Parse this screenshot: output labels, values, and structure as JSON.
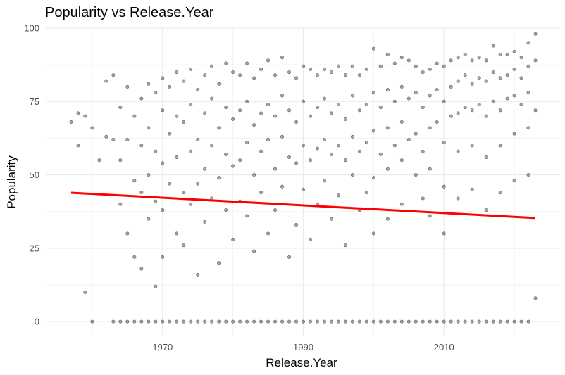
{
  "chart_data": {
    "type": "scatter",
    "title": "Popularity vs Release.Year",
    "xlabel": "Release.Year",
    "ylabel": "Popularity",
    "xlim": [
      1953.5,
      2026.5
    ],
    "ylim": [
      -5,
      100
    ],
    "x_ticks": [
      1970,
      1990,
      2010
    ],
    "y_ticks": [
      0,
      25,
      50,
      75,
      100
    ],
    "grid": true,
    "legend": "none",
    "point_color": "#000000",
    "point_opacity": 0.35,
    "trend_color": "#ff0000",
    "trend_line": {
      "x": [
        1957,
        2023
      ],
      "y": [
        43.9,
        35.3
      ]
    },
    "series": [
      {
        "points": [
          [
            1957,
            68
          ],
          [
            1958,
            71
          ],
          [
            1958,
            60
          ],
          [
            1959,
            70
          ],
          [
            1959,
            10
          ],
          [
            1960,
            0
          ],
          [
            1960,
            66
          ],
          [
            1961,
            55
          ],
          [
            1962,
            82
          ],
          [
            1962,
            63
          ],
          [
            1963,
            84
          ],
          [
            1963,
            62
          ],
          [
            1963,
            0
          ],
          [
            1964,
            73
          ],
          [
            1964,
            55
          ],
          [
            1964,
            40
          ],
          [
            1964,
            0
          ],
          [
            1965,
            80
          ],
          [
            1965,
            62
          ],
          [
            1965,
            30
          ],
          [
            1965,
            0
          ],
          [
            1966,
            70
          ],
          [
            1966,
            48
          ],
          [
            1966,
            22
          ],
          [
            1966,
            0
          ],
          [
            1967,
            76
          ],
          [
            1967,
            60
          ],
          [
            1967,
            44
          ],
          [
            1967,
            18
          ],
          [
            1967,
            0
          ],
          [
            1968,
            81
          ],
          [
            1968,
            66
          ],
          [
            1968,
            50
          ],
          [
            1968,
            35
          ],
          [
            1968,
            0
          ],
          [
            1969,
            78
          ],
          [
            1969,
            58
          ],
          [
            1969,
            41
          ],
          [
            1969,
            12
          ],
          [
            1969,
            0
          ],
          [
            1970,
            83
          ],
          [
            1970,
            72
          ],
          [
            1970,
            54
          ],
          [
            1970,
            38
          ],
          [
            1970,
            22
          ],
          [
            1970,
            0
          ],
          [
            1971,
            80
          ],
          [
            1971,
            64
          ],
          [
            1971,
            47
          ],
          [
            1971,
            0
          ],
          [
            1972,
            85
          ],
          [
            1972,
            70
          ],
          [
            1972,
            56
          ],
          [
            1972,
            30
          ],
          [
            1972,
            0
          ],
          [
            1973,
            82
          ],
          [
            1973,
            68
          ],
          [
            1973,
            44
          ],
          [
            1973,
            26
          ],
          [
            1973,
            0
          ],
          [
            1974,
            86
          ],
          [
            1974,
            74
          ],
          [
            1974,
            58
          ],
          [
            1974,
            40
          ],
          [
            1974,
            0
          ],
          [
            1975,
            79
          ],
          [
            1975,
            62
          ],
          [
            1975,
            47
          ],
          [
            1975,
            16
          ],
          [
            1975,
            0
          ],
          [
            1976,
            84
          ],
          [
            1976,
            71
          ],
          [
            1976,
            52
          ],
          [
            1976,
            34
          ],
          [
            1976,
            0
          ],
          [
            1977,
            87
          ],
          [
            1977,
            76
          ],
          [
            1977,
            60
          ],
          [
            1977,
            42
          ],
          [
            1977,
            0
          ],
          [
            1978,
            81
          ],
          [
            1978,
            66
          ],
          [
            1978,
            49
          ],
          [
            1978,
            20
          ],
          [
            1978,
            0
          ],
          [
            1979,
            88
          ],
          [
            1979,
            73
          ],
          [
            1979,
            57
          ],
          [
            1979,
            38
          ],
          [
            1979,
            0
          ],
          [
            1980,
            85
          ],
          [
            1980,
            69
          ],
          [
            1980,
            53
          ],
          [
            1980,
            28
          ],
          [
            1980,
            0
          ],
          [
            1981,
            84
          ],
          [
            1981,
            72
          ],
          [
            1981,
            55
          ],
          [
            1981,
            41
          ],
          [
            1981,
            0
          ],
          [
            1982,
            88
          ],
          [
            1982,
            75
          ],
          [
            1982,
            61
          ],
          [
            1982,
            36
          ],
          [
            1982,
            0
          ],
          [
            1983,
            83
          ],
          [
            1983,
            67
          ],
          [
            1983,
            50
          ],
          [
            1983,
            24
          ],
          [
            1983,
            0
          ],
          [
            1984,
            86
          ],
          [
            1984,
            71
          ],
          [
            1984,
            58
          ],
          [
            1984,
            44
          ],
          [
            1984,
            0
          ],
          [
            1985,
            89
          ],
          [
            1985,
            74
          ],
          [
            1985,
            62
          ],
          [
            1985,
            30
          ],
          [
            1985,
            0
          ],
          [
            1986,
            84
          ],
          [
            1986,
            70
          ],
          [
            1986,
            52
          ],
          [
            1986,
            38
          ],
          [
            1986,
            0
          ],
          [
            1987,
            90
          ],
          [
            1987,
            77
          ],
          [
            1987,
            63
          ],
          [
            1987,
            46
          ],
          [
            1987,
            0
          ],
          [
            1988,
            85
          ],
          [
            1988,
            72
          ],
          [
            1988,
            56
          ],
          [
            1988,
            22
          ],
          [
            1988,
            0
          ],
          [
            1989,
            83
          ],
          [
            1989,
            68
          ],
          [
            1989,
            54
          ],
          [
            1989,
            33
          ],
          [
            1989,
            0
          ],
          [
            1990,
            87
          ],
          [
            1990,
            75
          ],
          [
            1990,
            60
          ],
          [
            1990,
            45
          ],
          [
            1990,
            0
          ],
          [
            1991,
            86
          ],
          [
            1991,
            70
          ],
          [
            1991,
            55
          ],
          [
            1991,
            28
          ],
          [
            1991,
            0
          ],
          [
            1992,
            84
          ],
          [
            1992,
            73
          ],
          [
            1992,
            59
          ],
          [
            1992,
            40
          ],
          [
            1992,
            0
          ],
          [
            1993,
            86
          ],
          [
            1993,
            76
          ],
          [
            1993,
            62
          ],
          [
            1993,
            48
          ],
          [
            1993,
            0
          ],
          [
            1994,
            85
          ],
          [
            1994,
            71
          ],
          [
            1994,
            57
          ],
          [
            1994,
            35
          ],
          [
            1994,
            0
          ],
          [
            1995,
            87
          ],
          [
            1995,
            74
          ],
          [
            1995,
            60
          ],
          [
            1995,
            43
          ],
          [
            1995,
            0
          ],
          [
            1996,
            84
          ],
          [
            1996,
            69
          ],
          [
            1996,
            55
          ],
          [
            1996,
            26
          ],
          [
            1996,
            0
          ],
          [
            1997,
            87
          ],
          [
            1997,
            77
          ],
          [
            1997,
            63
          ],
          [
            1997,
            50
          ],
          [
            1997,
            0
          ],
          [
            1998,
            84
          ],
          [
            1998,
            72
          ],
          [
            1998,
            58
          ],
          [
            1998,
            38
          ],
          [
            1998,
            0
          ],
          [
            1999,
            86
          ],
          [
            1999,
            74
          ],
          [
            1999,
            61
          ],
          [
            1999,
            44
          ],
          [
            1999,
            0
          ],
          [
            2000,
            93
          ],
          [
            2000,
            78
          ],
          [
            2000,
            65
          ],
          [
            2000,
            49
          ],
          [
            2000,
            30
          ],
          [
            2000,
            0
          ],
          [
            2001,
            87
          ],
          [
            2001,
            73
          ],
          [
            2001,
            57
          ],
          [
            2001,
            0
          ],
          [
            2002,
            91
          ],
          [
            2002,
            79
          ],
          [
            2002,
            66
          ],
          [
            2002,
            52
          ],
          [
            2002,
            35
          ],
          [
            2002,
            0
          ],
          [
            2003,
            88
          ],
          [
            2003,
            75
          ],
          [
            2003,
            60
          ],
          [
            2003,
            0
          ],
          [
            2004,
            90
          ],
          [
            2004,
            80
          ],
          [
            2004,
            68
          ],
          [
            2004,
            55
          ],
          [
            2004,
            40
          ],
          [
            2004,
            0
          ],
          [
            2005,
            89
          ],
          [
            2005,
            76
          ],
          [
            2005,
            62
          ],
          [
            2005,
            0
          ],
          [
            2006,
            87
          ],
          [
            2006,
            78
          ],
          [
            2006,
            64
          ],
          [
            2006,
            50
          ],
          [
            2006,
            0
          ],
          [
            2007,
            85
          ],
          [
            2007,
            73
          ],
          [
            2007,
            58
          ],
          [
            2007,
            42
          ],
          [
            2007,
            0
          ],
          [
            2008,
            86
          ],
          [
            2008,
            77
          ],
          [
            2008,
            66
          ],
          [
            2008,
            52
          ],
          [
            2008,
            36
          ],
          [
            2008,
            0
          ],
          [
            2009,
            88
          ],
          [
            2009,
            79
          ],
          [
            2009,
            68
          ],
          [
            2009,
            0
          ],
          [
            2010,
            87
          ],
          [
            2010,
            75
          ],
          [
            2010,
            61
          ],
          [
            2010,
            46
          ],
          [
            2010,
            30
          ],
          [
            2010,
            0
          ],
          [
            2011,
            89
          ],
          [
            2011,
            80
          ],
          [
            2011,
            70
          ],
          [
            2011,
            0
          ],
          [
            2012,
            90
          ],
          [
            2012,
            82
          ],
          [
            2012,
            71
          ],
          [
            2012,
            58
          ],
          [
            2012,
            42
          ],
          [
            2012,
            0
          ],
          [
            2013,
            91
          ],
          [
            2013,
            84
          ],
          [
            2013,
            73
          ],
          [
            2013,
            0
          ],
          [
            2014,
            89
          ],
          [
            2014,
            81
          ],
          [
            2014,
            72
          ],
          [
            2014,
            60
          ],
          [
            2014,
            45
          ],
          [
            2014,
            0
          ],
          [
            2015,
            90
          ],
          [
            2015,
            83
          ],
          [
            2015,
            74
          ],
          [
            2015,
            0
          ],
          [
            2016,
            89
          ],
          [
            2016,
            82
          ],
          [
            2016,
            70
          ],
          [
            2016,
            56
          ],
          [
            2016,
            38
          ],
          [
            2016,
            0
          ],
          [
            2017,
            94
          ],
          [
            2017,
            85
          ],
          [
            2017,
            75
          ],
          [
            2017,
            0
          ],
          [
            2018,
            91
          ],
          [
            2018,
            83
          ],
          [
            2018,
            72
          ],
          [
            2018,
            60
          ],
          [
            2018,
            44
          ],
          [
            2018,
            0
          ],
          [
            2019,
            91
          ],
          [
            2019,
            84
          ],
          [
            2019,
            76
          ],
          [
            2019,
            0
          ],
          [
            2020,
            92
          ],
          [
            2020,
            86
          ],
          [
            2020,
            77
          ],
          [
            2020,
            64
          ],
          [
            2020,
            48
          ],
          [
            2020,
            0
          ],
          [
            2021,
            90
          ],
          [
            2021,
            83
          ],
          [
            2021,
            74
          ],
          [
            2021,
            0
          ],
          [
            2022,
            95
          ],
          [
            2022,
            87
          ],
          [
            2022,
            78
          ],
          [
            2022,
            66
          ],
          [
            2022,
            50
          ],
          [
            2022,
            0
          ],
          [
            2023,
            98
          ],
          [
            2023,
            89
          ],
          [
            2023,
            72
          ],
          [
            2023,
            8
          ]
        ]
      }
    ]
  }
}
